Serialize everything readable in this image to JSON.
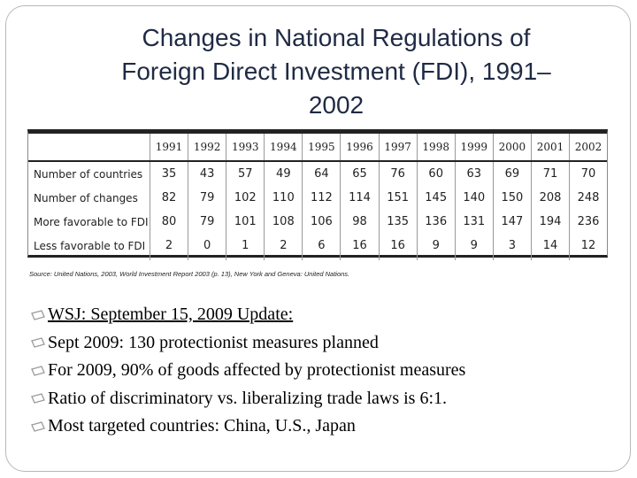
{
  "slide": {
    "title_lines": [
      "Changes in National Regulations of",
      "Foreign Direct Investment (FDI), 1991–",
      "2002"
    ]
  },
  "table": {
    "years": [
      "1991",
      "1992",
      "1993",
      "1994",
      "1995",
      "1996",
      "1997",
      "1998",
      "1999",
      "2000",
      "2001",
      "2002"
    ],
    "rows": [
      {
        "label": "Number of countries",
        "values": [
          "35",
          "43",
          "57",
          "49",
          "64",
          "65",
          "76",
          "60",
          "63",
          "69",
          "71",
          "70"
        ]
      },
      {
        "label": "Number of changes",
        "values": [
          "82",
          "79",
          "102",
          "110",
          "112",
          "114",
          "151",
          "145",
          "140",
          "150",
          "208",
          "248"
        ]
      },
      {
        "label": "More favorable to FDI",
        "values": [
          "80",
          "79",
          "101",
          "108",
          "106",
          "98",
          "135",
          "136",
          "131",
          "147",
          "194",
          "236"
        ]
      },
      {
        "label": "Less favorable to FDI",
        "values": [
          "2",
          "0",
          "1",
          "2",
          "6",
          "16",
          "16",
          "9",
          "9",
          "3",
          "14",
          "12"
        ]
      }
    ]
  },
  "source": "Source: United Nations, 2003, World Investment Report 2003 (p. 13), New York and Geneva: United Nations.",
  "bullets": [
    {
      "text": "WSJ: September 15, 2009 Update:",
      "underline": true
    },
    {
      "text": "Sept 2009: 130 protectionist measures planned",
      "underline": false
    },
    {
      "text": "For 2009, 90% of goods affected by protectionist measures",
      "underline": false
    },
    {
      "text": "Ratio of discriminatory vs. liberalizing trade laws is 6:1.",
      "underline": false
    },
    {
      "text": "Most targeted countries: China, U.S., Japan",
      "underline": false
    }
  ],
  "colors": {
    "title": "#1f2a44",
    "bullet_icon": "#9a9a9a"
  },
  "icons": {
    "bullet": "tilted-rectangle-bullet-icon"
  }
}
